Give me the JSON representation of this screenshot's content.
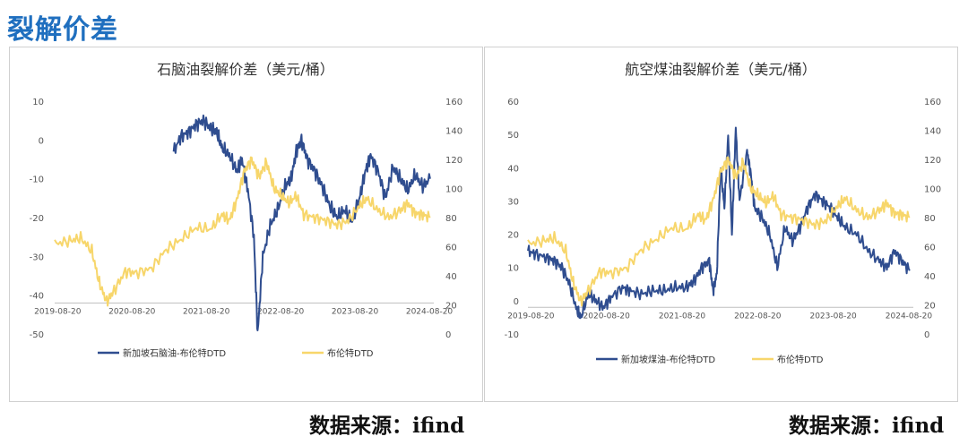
{
  "page": {
    "title": "裂解价差",
    "source_left": "数据来源：ifind",
    "source_right": "数据来源：ifind"
  },
  "colors": {
    "blue": "#2f4d8f",
    "yellow": "#f7d66b"
  },
  "chart_data": [
    {
      "type": "line",
      "title": "石脑油裂解价差（美元/桶）",
      "x_ticks": [
        "2019-08-20",
        "2020-08-20",
        "2021-08-20",
        "2022-08-20",
        "2023-08-20",
        "2024-08-20"
      ],
      "x_range": [
        2019.6,
        2024.7
      ],
      "y_left_ticks": [
        "10",
        "0",
        "-10",
        "-20",
        "-30",
        "-40",
        "-50"
      ],
      "y_right_ticks": [
        "160",
        "140",
        "120",
        "100",
        "80",
        "60",
        "40",
        "20",
        "0"
      ],
      "y_left_range": [
        -50,
        10
      ],
      "y_right_range": [
        0,
        160
      ],
      "series": [
        {
          "name": "新加坡石脑油-布伦特DTD",
          "axis": "left",
          "color": "#2f4d8f",
          "points": [
            [
              2021.2,
              -3
            ],
            [
              2021.3,
              1
            ],
            [
              2021.4,
              2
            ],
            [
              2021.5,
              4
            ],
            [
              2021.6,
              5
            ],
            [
              2021.7,
              3
            ],
            [
              2021.78,
              2
            ],
            [
              2021.85,
              -2
            ],
            [
              2021.95,
              -4
            ],
            [
              2022.05,
              -8
            ],
            [
              2022.12,
              -5
            ],
            [
              2022.2,
              -13
            ],
            [
              2022.28,
              -25
            ],
            [
              2022.33,
              -50
            ],
            [
              2022.4,
              -30
            ],
            [
              2022.5,
              -22
            ],
            [
              2022.6,
              -18
            ],
            [
              2022.7,
              -12
            ],
            [
              2022.78,
              -10
            ],
            [
              2022.85,
              -3
            ],
            [
              2022.92,
              0
            ],
            [
              2023.0,
              -5
            ],
            [
              2023.1,
              -8
            ],
            [
              2023.2,
              -12
            ],
            [
              2023.3,
              -17
            ],
            [
              2023.4,
              -20
            ],
            [
              2023.5,
              -18
            ],
            [
              2023.6,
              -21
            ],
            [
              2023.7,
              -15
            ],
            [
              2023.78,
              -8
            ],
            [
              2023.85,
              -4
            ],
            [
              2023.95,
              -8
            ],
            [
              2024.05,
              -15
            ],
            [
              2024.15,
              -7
            ],
            [
              2024.25,
              -10
            ],
            [
              2024.35,
              -13
            ],
            [
              2024.45,
              -9
            ],
            [
              2024.55,
              -12
            ],
            [
              2024.65,
              -10
            ]
          ]
        },
        {
          "name": "布伦特DTD",
          "axis": "right",
          "color": "#f7d66b",
          "points": [
            [
              2019.6,
              62
            ],
            [
              2019.8,
              64
            ],
            [
              2019.95,
              66
            ],
            [
              2020.1,
              57
            ],
            [
              2020.2,
              35
            ],
            [
              2020.3,
              22
            ],
            [
              2020.4,
              30
            ],
            [
              2020.55,
              43
            ],
            [
              2020.7,
              42
            ],
            [
              2020.9,
              45
            ],
            [
              2021.1,
              58
            ],
            [
              2021.3,
              65
            ],
            [
              2021.5,
              73
            ],
            [
              2021.7,
              72
            ],
            [
              2021.85,
              82
            ],
            [
              2021.95,
              78
            ],
            [
              2022.05,
              92
            ],
            [
              2022.15,
              112
            ],
            [
              2022.25,
              120
            ],
            [
              2022.35,
              108
            ],
            [
              2022.45,
              118
            ],
            [
              2022.55,
              100
            ],
            [
              2022.65,
              95
            ],
            [
              2022.75,
              90
            ],
            [
              2022.85,
              95
            ],
            [
              2022.95,
              82
            ],
            [
              2023.1,
              80
            ],
            [
              2023.25,
              78
            ],
            [
              2023.4,
              75
            ],
            [
              2023.55,
              78
            ],
            [
              2023.7,
              88
            ],
            [
              2023.8,
              93
            ],
            [
              2023.95,
              85
            ],
            [
              2024.1,
              80
            ],
            [
              2024.25,
              85
            ],
            [
              2024.35,
              90
            ],
            [
              2024.45,
              83
            ],
            [
              2024.55,
              82
            ],
            [
              2024.65,
              80
            ]
          ]
        }
      ]
    },
    {
      "type": "line",
      "title": "航空煤油裂解价差（美元/桶）",
      "x_ticks": [
        "2019-08-20",
        "2020-08-20",
        "2021-08-20",
        "2022-08-20",
        "2023-08-20",
        "2024-08-20"
      ],
      "x_range": [
        2019.6,
        2024.7
      ],
      "y_left_ticks": [
        "60",
        "50",
        "40",
        "30",
        "20",
        "10",
        "0",
        "-10"
      ],
      "y_right_ticks": [
        "160",
        "140",
        "120",
        "100",
        "80",
        "60",
        "40",
        "20",
        "0"
      ],
      "y_left_range": [
        -10,
        60
      ],
      "y_right_range": [
        0,
        160
      ],
      "series": [
        {
          "name": "新加坡煤油-布伦特DTD",
          "axis": "left",
          "color": "#2f4d8f",
          "points": [
            [
              2019.6,
              15
            ],
            [
              2019.7,
              14
            ],
            [
              2019.85,
              13
            ],
            [
              2019.95,
              12
            ],
            [
              2020.05,
              10
            ],
            [
              2020.15,
              5
            ],
            [
              2020.25,
              -3
            ],
            [
              2020.3,
              -5
            ],
            [
              2020.4,
              2
            ],
            [
              2020.5,
              0
            ],
            [
              2020.6,
              -2
            ],
            [
              2020.7,
              1
            ],
            [
              2020.85,
              4
            ],
            [
              2020.95,
              3
            ],
            [
              2021.1,
              2
            ],
            [
              2021.25,
              3
            ],
            [
              2021.4,
              3
            ],
            [
              2021.55,
              4
            ],
            [
              2021.7,
              4
            ],
            [
              2021.8,
              6
            ],
            [
              2021.9,
              10
            ],
            [
              2022.0,
              12
            ],
            [
              2022.05,
              3
            ],
            [
              2022.1,
              8
            ],
            [
              2022.15,
              40
            ],
            [
              2022.2,
              28
            ],
            [
              2022.25,
              50
            ],
            [
              2022.3,
              20
            ],
            [
              2022.35,
              52
            ],
            [
              2022.4,
              30
            ],
            [
              2022.5,
              45
            ],
            [
              2022.55,
              38
            ],
            [
              2022.6,
              28
            ],
            [
              2022.7,
              25
            ],
            [
              2022.8,
              20
            ],
            [
              2022.9,
              10
            ],
            [
              2023.0,
              22
            ],
            [
              2023.1,
              18
            ],
            [
              2023.2,
              22
            ],
            [
              2023.3,
              28
            ],
            [
              2023.4,
              32
            ],
            [
              2023.5,
              30
            ],
            [
              2023.6,
              28
            ],
            [
              2023.7,
              25
            ],
            [
              2023.8,
              22
            ],
            [
              2023.95,
              20
            ],
            [
              2024.1,
              15
            ],
            [
              2024.25,
              12
            ],
            [
              2024.35,
              10
            ],
            [
              2024.45,
              15
            ],
            [
              2024.55,
              12
            ],
            [
              2024.65,
              9
            ]
          ]
        },
        {
          "name": "布伦特DTD",
          "axis": "right",
          "color": "#f7d66b",
          "points": [
            [
              2019.6,
              62
            ],
            [
              2019.8,
              64
            ],
            [
              2019.95,
              66
            ],
            [
              2020.1,
              57
            ],
            [
              2020.2,
              35
            ],
            [
              2020.3,
              22
            ],
            [
              2020.4,
              30
            ],
            [
              2020.55,
              43
            ],
            [
              2020.7,
              42
            ],
            [
              2020.9,
              45
            ],
            [
              2021.1,
              58
            ],
            [
              2021.3,
              65
            ],
            [
              2021.5,
              73
            ],
            [
              2021.7,
              72
            ],
            [
              2021.85,
              82
            ],
            [
              2021.95,
              78
            ],
            [
              2022.05,
              92
            ],
            [
              2022.15,
              112
            ],
            [
              2022.25,
              120
            ],
            [
              2022.35,
              108
            ],
            [
              2022.45,
              118
            ],
            [
              2022.55,
              100
            ],
            [
              2022.65,
              95
            ],
            [
              2022.75,
              90
            ],
            [
              2022.85,
              95
            ],
            [
              2022.95,
              82
            ],
            [
              2023.1,
              80
            ],
            [
              2023.25,
              78
            ],
            [
              2023.4,
              75
            ],
            [
              2023.55,
              78
            ],
            [
              2023.7,
              88
            ],
            [
              2023.8,
              93
            ],
            [
              2023.95,
              85
            ],
            [
              2024.1,
              80
            ],
            [
              2024.25,
              85
            ],
            [
              2024.35,
              90
            ],
            [
              2024.45,
              83
            ],
            [
              2024.55,
              82
            ],
            [
              2024.65,
              80
            ]
          ]
        }
      ]
    }
  ]
}
